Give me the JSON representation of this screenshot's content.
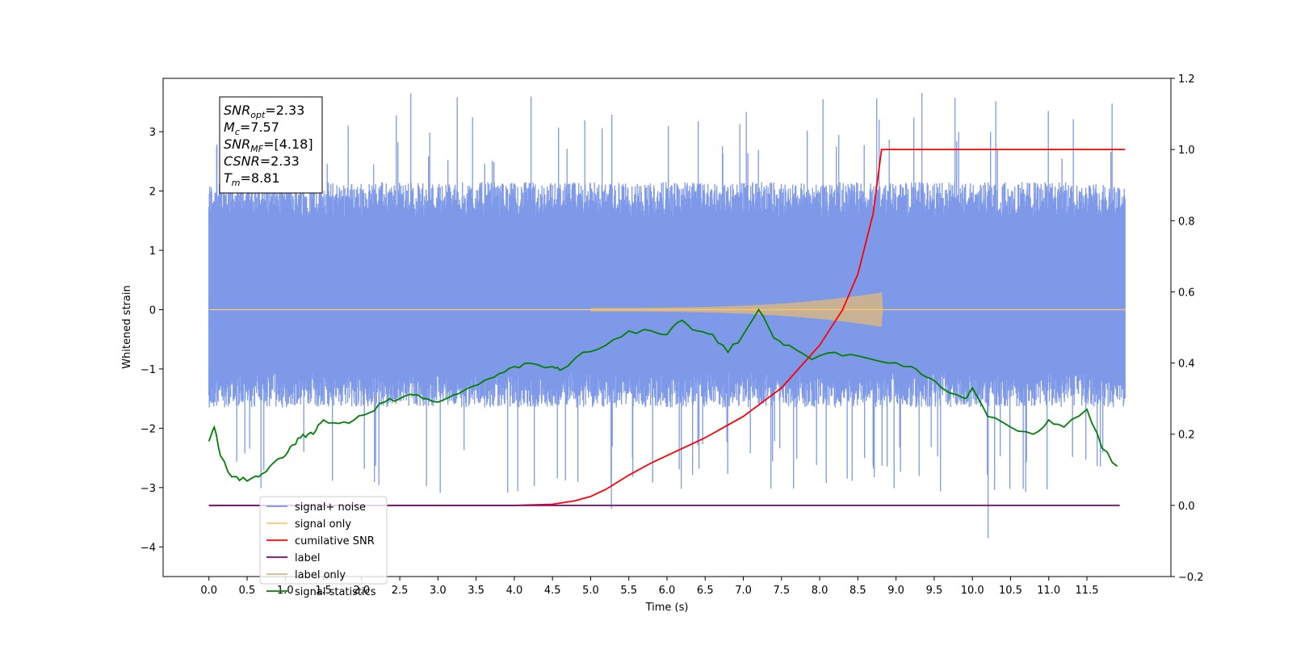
{
  "chart_data": {
    "type": "line",
    "xlabel": "Time (s)",
    "ylabel": "Whitened strain",
    "x_ticks": [
      "0.0",
      "0.5",
      "1.0",
      "1.5",
      "2.0",
      "2.5",
      "3.0",
      "3.5",
      "4.0",
      "4.5",
      "5.0",
      "5.5",
      "6.0",
      "6.5",
      "7.0",
      "7.5",
      "8.0",
      "8.5",
      "9.0",
      "9.5",
      "10.0",
      "10.5",
      "11.0",
      "11.5"
    ],
    "xlim": [
      -0.6,
      12.6
    ],
    "ylim_left": [
      -4.5,
      3.9
    ],
    "yticks_left": [
      -4,
      -3,
      -2,
      -1,
      0,
      1,
      2,
      3
    ],
    "ylim_right": [
      -0.2,
      1.2
    ],
    "yticks_right": [
      "−0.2",
      "0.0",
      "0.2",
      "0.4",
      "0.6",
      "0.8",
      "1.0",
      "1.2"
    ],
    "legend_position": "lower-left",
    "stats_box": {
      "lines": [
        {
          "sym": "SNR",
          "sub": "opt",
          "value": "=2.33"
        },
        {
          "sym": "M",
          "sub": "c",
          "value": "=7.57"
        },
        {
          "sym": "SNR",
          "sub": "MF",
          "value": "=[4.18]"
        },
        {
          "sym": "CSNR",
          "sub": "",
          "value": "=2.33"
        },
        {
          "sym": "T",
          "sub": "m",
          "value": "=8.81"
        }
      ]
    },
    "series": [
      {
        "name": "signal+ noise",
        "axis": "left",
        "color": "#7893e8",
        "kind": "noise",
        "x_range": [
          0,
          12
        ],
        "band": [
          -1.9,
          2.0
        ],
        "spike_min": -4.1,
        "spike_max": 3.55
      },
      {
        "name": "signal only",
        "axis": "left",
        "color": "#ffc966",
        "kind": "chirp",
        "x_range": [
          0,
          12
        ],
        "merger_time": 8.81,
        "peak_amp": 0.35
      },
      {
        "name": "cumilative SNR",
        "axis": "right",
        "color": "#ff0000",
        "x": [
          0,
          4.0,
          4.5,
          4.8,
          5.0,
          5.2,
          5.5,
          5.8,
          6.0,
          6.5,
          7.0,
          7.5,
          8.0,
          8.3,
          8.5,
          8.7,
          8.81,
          12.0
        ],
        "values": [
          0.0,
          0.0,
          0.003,
          0.013,
          0.025,
          0.045,
          0.085,
          0.12,
          0.14,
          0.19,
          0.25,
          0.33,
          0.45,
          0.55,
          0.65,
          0.82,
          1.0,
          1.0
        ]
      },
      {
        "name": "label",
        "axis": "right",
        "color": "#800080",
        "x": [
          0,
          11.93
        ],
        "values": [
          0,
          0
        ]
      },
      {
        "name": "label only",
        "axis": "right",
        "color": "#d2b48c",
        "kind": "envelope",
        "x_range": [
          5,
          8.81
        ]
      },
      {
        "name": "signal statistics",
        "axis": "right",
        "color": "#008000",
        "x": [
          0,
          0.07,
          0.15,
          0.3,
          0.4,
          0.55,
          0.65,
          0.8,
          0.9,
          1.0,
          1.1,
          1.2,
          1.3,
          1.4,
          1.5,
          1.7,
          1.9,
          2.1,
          2.3,
          2.5,
          2.7,
          2.8,
          3.0,
          3.2,
          3.4,
          3.6,
          3.8,
          4.0,
          4.2,
          4.5,
          4.6,
          4.9,
          5.2,
          5.5,
          5.8,
          6.0,
          6.2,
          6.4,
          6.6,
          6.8,
          7.0,
          7.2,
          7.4,
          7.6,
          7.9,
          8.2,
          8.5,
          8.9,
          9.2,
          9.4,
          9.6,
          9.9,
          10.0,
          10.2,
          10.5,
          10.8,
          11.0,
          11.2,
          11.5,
          11.7,
          11.9
        ],
        "values": [
          0.18,
          0.22,
          0.14,
          0.08,
          0.07,
          0.075,
          0.08,
          0.11,
          0.13,
          0.14,
          0.17,
          0.19,
          0.2,
          0.21,
          0.24,
          0.23,
          0.24,
          0.26,
          0.29,
          0.3,
          0.31,
          0.3,
          0.29,
          0.31,
          0.33,
          0.35,
          0.37,
          0.39,
          0.4,
          0.39,
          0.38,
          0.43,
          0.45,
          0.49,
          0.49,
          0.48,
          0.52,
          0.49,
          0.48,
          0.43,
          0.48,
          0.55,
          0.47,
          0.45,
          0.41,
          0.43,
          0.42,
          0.4,
          0.39,
          0.36,
          0.33,
          0.3,
          0.33,
          0.25,
          0.22,
          0.2,
          0.24,
          0.22,
          0.27,
          0.16,
          0.11
        ]
      }
    ]
  }
}
